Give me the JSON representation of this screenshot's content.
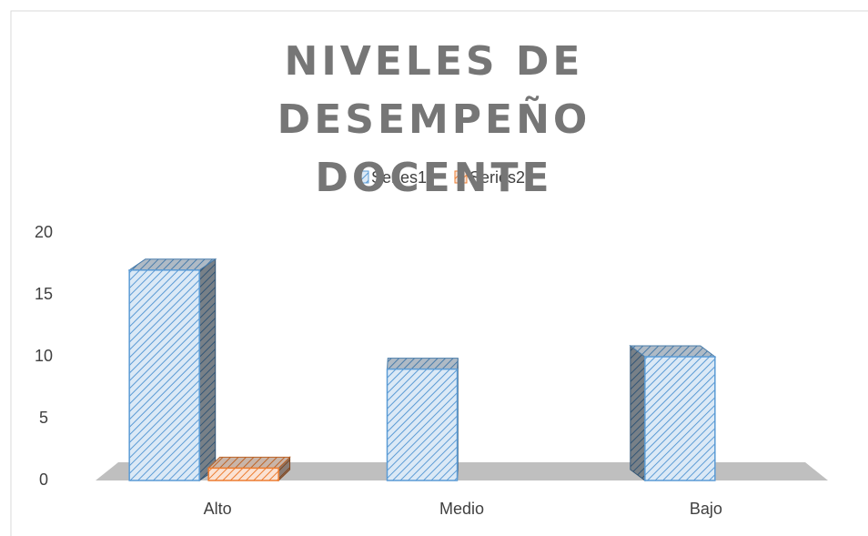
{
  "chart_data": {
    "type": "bar3d",
    "title": "NIVELES DE DESEMPEÑO DOCENTE",
    "categories": [
      "Alto",
      "Medio",
      "Bajo"
    ],
    "series": [
      {
        "name": "Series1",
        "color": "#5b9bd5",
        "values": [
          17,
          9,
          10
        ]
      },
      {
        "name": "Series2",
        "color": "#ed7d31",
        "values": [
          1,
          null,
          null
        ]
      }
    ],
    "ylim": [
      0,
      20
    ],
    "yticks": [
      0,
      5,
      10,
      15,
      20
    ],
    "legend": "top"
  }
}
